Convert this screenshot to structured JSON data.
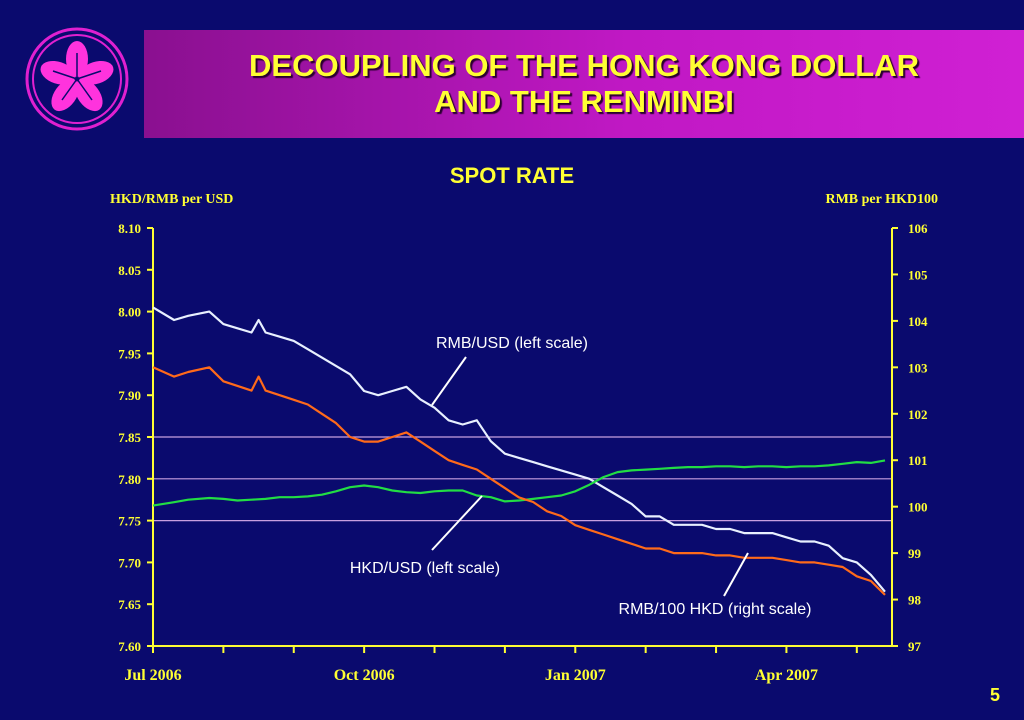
{
  "slide": {
    "title_line1": "DECOUPLING OF THE HONG KONG DOLLAR",
    "title_line2": "AND THE RENMINBI",
    "page_number": "5"
  },
  "colors": {
    "background": "#0a0a6e",
    "title_bar": "#c018c4",
    "title_text": "#ffff33",
    "axis": "#ffff33",
    "rmb_usd": "#e8f0ff",
    "hkd_usd": "#22dd44",
    "rmb_hkd": "#ff6a1a",
    "reference_lines": "#c8a0e0"
  },
  "chart_data": {
    "type": "line",
    "title": "SPOT RATE",
    "ylabel_left": "HKD/RMB per USD",
    "ylabel_right": "RMB per HKD100",
    "ylim_left": [
      7.6,
      8.1
    ],
    "ylim_right": [
      97,
      106
    ],
    "yticks_left": [
      "8.10",
      "8.05",
      "8.00",
      "7.95",
      "7.90",
      "7.85",
      "7.80",
      "7.75",
      "7.70",
      "7.65",
      "7.60"
    ],
    "yticks_right": [
      "106",
      "105",
      "104",
      "103",
      "102",
      "101",
      "100",
      "99",
      "98",
      "97"
    ],
    "x_labels": [
      {
        "label": "Jul 2006",
        "x": 0
      },
      {
        "label": "Oct 2006",
        "x": 3
      },
      {
        "label": "Jan 2007",
        "x": 6
      },
      {
        "label": "Apr 2007",
        "x": 9
      }
    ],
    "xlim": [
      0,
      10.5
    ],
    "reference_lines_left": [
      7.85,
      7.8,
      7.75
    ],
    "grid": false,
    "series": [
      {
        "name": "RMB/USD (left scale)",
        "axis": "left",
        "x": [
          0,
          0.3,
          0.5,
          0.8,
          1.0,
          1.2,
          1.4,
          1.5,
          1.6,
          1.8,
          2.0,
          2.2,
          2.4,
          2.6,
          2.8,
          3.0,
          3.2,
          3.4,
          3.6,
          3.8,
          4.0,
          4.2,
          4.4,
          4.6,
          4.8,
          5.0,
          5.2,
          5.4,
          5.6,
          5.8,
          6.0,
          6.2,
          6.4,
          6.6,
          6.8,
          7.0,
          7.2,
          7.4,
          7.6,
          7.8,
          8.0,
          8.2,
          8.4,
          8.6,
          8.8,
          9.0,
          9.2,
          9.4,
          9.6,
          9.8,
          10.0,
          10.2,
          10.4
        ],
        "values": [
          8.005,
          7.99,
          7.995,
          8.0,
          7.985,
          7.98,
          7.975,
          7.99,
          7.975,
          7.97,
          7.965,
          7.955,
          7.945,
          7.935,
          7.925,
          7.905,
          7.9,
          7.905,
          7.91,
          7.895,
          7.885,
          7.87,
          7.865,
          7.87,
          7.845,
          7.83,
          7.825,
          7.82,
          7.815,
          7.81,
          7.805,
          7.8,
          7.79,
          7.78,
          7.77,
          7.755,
          7.755,
          7.745,
          7.745,
          7.745,
          7.74,
          7.74,
          7.735,
          7.735,
          7.735,
          7.73,
          7.725,
          7.725,
          7.72,
          7.705,
          7.7,
          7.685,
          7.665
        ]
      },
      {
        "name": "HKD/USD (left scale)",
        "axis": "left",
        "x": [
          0,
          0.3,
          0.5,
          0.8,
          1.0,
          1.2,
          1.4,
          1.6,
          1.8,
          2.0,
          2.2,
          2.4,
          2.6,
          2.8,
          3.0,
          3.2,
          3.4,
          3.6,
          3.8,
          4.0,
          4.2,
          4.4,
          4.6,
          4.8,
          5.0,
          5.2,
          5.4,
          5.6,
          5.8,
          6.0,
          6.2,
          6.4,
          6.6,
          6.8,
          7.0,
          7.2,
          7.4,
          7.6,
          7.8,
          8.0,
          8.2,
          8.4,
          8.6,
          8.8,
          9.0,
          9.2,
          9.4,
          9.6,
          9.8,
          10.0,
          10.2,
          10.4
        ],
        "values": [
          7.768,
          7.772,
          7.775,
          7.777,
          7.776,
          7.774,
          7.775,
          7.776,
          7.778,
          7.778,
          7.779,
          7.781,
          7.785,
          7.79,
          7.792,
          7.79,
          7.786,
          7.784,
          7.783,
          7.785,
          7.786,
          7.786,
          7.78,
          7.778,
          7.773,
          7.774,
          7.776,
          7.778,
          7.78,
          7.785,
          7.793,
          7.802,
          7.808,
          7.81,
          7.811,
          7.812,
          7.813,
          7.814,
          7.814,
          7.815,
          7.815,
          7.814,
          7.815,
          7.815,
          7.814,
          7.815,
          7.815,
          7.816,
          7.818,
          7.82,
          7.819,
          7.822
        ]
      },
      {
        "name": "RMB/100 HKD (right scale)",
        "axis": "right",
        "x": [
          0,
          0.3,
          0.5,
          0.8,
          1.0,
          1.2,
          1.4,
          1.5,
          1.6,
          1.8,
          2.0,
          2.2,
          2.4,
          2.6,
          2.8,
          3.0,
          3.2,
          3.4,
          3.6,
          3.8,
          4.0,
          4.2,
          4.4,
          4.6,
          4.8,
          5.0,
          5.2,
          5.4,
          5.6,
          5.8,
          6.0,
          6.2,
          6.4,
          6.6,
          6.8,
          7.0,
          7.2,
          7.4,
          7.6,
          7.8,
          8.0,
          8.2,
          8.4,
          8.6,
          8.8,
          9.0,
          9.2,
          9.4,
          9.6,
          9.8,
          10.0,
          10.2,
          10.4
        ],
        "values": [
          103.0,
          102.8,
          102.9,
          103.0,
          102.7,
          102.6,
          102.5,
          102.8,
          102.5,
          102.4,
          102.3,
          102.2,
          102.0,
          101.8,
          101.5,
          101.4,
          101.4,
          101.5,
          101.6,
          101.4,
          101.2,
          101.0,
          100.9,
          100.8,
          100.6,
          100.4,
          100.2,
          100.1,
          99.9,
          99.8,
          99.6,
          99.5,
          99.4,
          99.3,
          99.2,
          99.1,
          99.1,
          99.0,
          99.0,
          99.0,
          98.95,
          98.95,
          98.9,
          98.9,
          98.9,
          98.85,
          98.8,
          98.8,
          98.75,
          98.7,
          98.5,
          98.4,
          98.1
        ]
      }
    ],
    "annotations": [
      {
        "text": "RMB/USD (left scale)",
        "series": 0
      },
      {
        "text": "HKD/USD (left scale)",
        "series": 1
      },
      {
        "text": "RMB/100 HKD (right scale)",
        "series": 2
      }
    ]
  }
}
